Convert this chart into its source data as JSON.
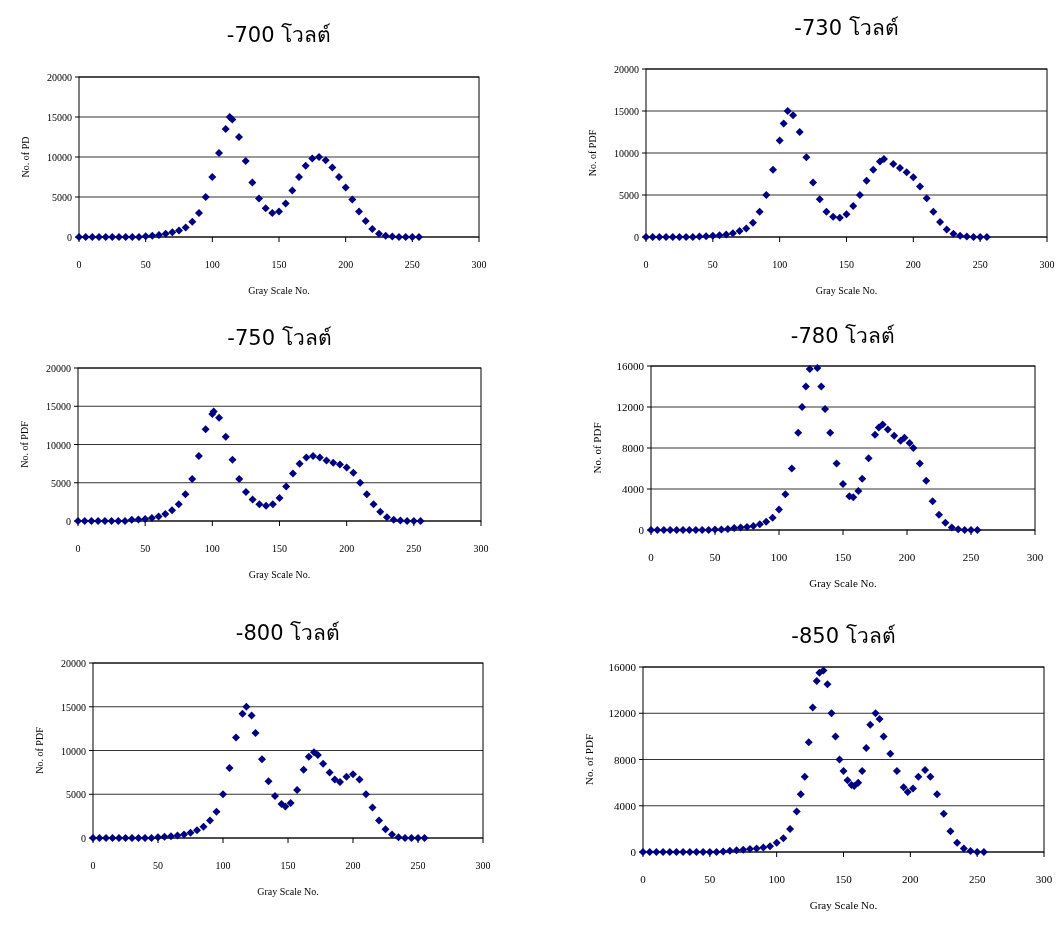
{
  "chart_data": [
    {
      "type": "scatter",
      "title": "-700  โวลต์",
      "xlabel": "Gray Scale No.",
      "ylabel": "No. of PD",
      "color": "#000080",
      "marker": "diamond",
      "grid": "y",
      "xlim": [
        0,
        300
      ],
      "xticks": [
        0,
        50,
        100,
        150,
        200,
        250,
        300
      ],
      "ylim": [
        0,
        20000
      ],
      "yticks": [
        0,
        5000,
        10000,
        15000,
        20000
      ],
      "x": [
        0,
        5,
        10,
        15,
        20,
        25,
        30,
        35,
        40,
        45,
        50,
        55,
        60,
        65,
        70,
        75,
        80,
        85,
        90,
        95,
        100,
        105,
        110,
        113,
        115,
        120,
        125,
        130,
        135,
        140,
        145,
        150,
        155,
        160,
        165,
        170,
        175,
        180,
        185,
        190,
        195,
        200,
        205,
        210,
        215,
        220,
        225,
        230,
        235,
        240,
        245,
        250,
        255
      ],
      "values": [
        0,
        0,
        0,
        0,
        0,
        0,
        0,
        0,
        0,
        0,
        100,
        150,
        250,
        400,
        600,
        800,
        1200,
        1900,
        3000,
        5000,
        7500,
        10500,
        13500,
        15000,
        14700,
        12500,
        9500,
        6800,
        4800,
        3600,
        3000,
        3200,
        4200,
        5800,
        7500,
        8900,
        9800,
        10000,
        9600,
        8700,
        7500,
        6200,
        4700,
        3200,
        2000,
        1000,
        400,
        150,
        50,
        0,
        0,
        0,
        0
      ]
    },
    {
      "type": "scatter",
      "title": "-730  โวลต์",
      "xlabel": "Gray Scale No.",
      "ylabel": "No. of PDF",
      "color": "#000080",
      "marker": "diamond",
      "grid": "y",
      "xlim": [
        0,
        300
      ],
      "xticks": [
        0,
        50,
        100,
        150,
        200,
        250,
        300
      ],
      "ylim": [
        0,
        20000
      ],
      "yticks": [
        0,
        5000,
        10000,
        15000,
        20000
      ],
      "x": [
        0,
        5,
        10,
        15,
        20,
        25,
        30,
        35,
        40,
        45,
        50,
        55,
        60,
        65,
        70,
        75,
        80,
        85,
        90,
        95,
        100,
        103,
        106,
        110,
        115,
        120,
        125,
        130,
        135,
        140,
        145,
        150,
        155,
        160,
        165,
        170,
        175,
        178,
        185,
        190,
        195,
        200,
        205,
        210,
        215,
        220,
        225,
        230,
        235,
        240,
        245,
        250,
        255
      ],
      "values": [
        0,
        0,
        0,
        0,
        0,
        0,
        0,
        0,
        50,
        100,
        150,
        200,
        300,
        450,
        700,
        1000,
        1700,
        3000,
        5000,
        8000,
        11500,
        13500,
        15000,
        14500,
        12500,
        9500,
        6500,
        4500,
        3000,
        2400,
        2300,
        2700,
        3700,
        5000,
        6700,
        8000,
        9000,
        9300,
        8700,
        8200,
        7700,
        7100,
        6000,
        4600,
        3000,
        1800,
        900,
        400,
        150,
        50,
        0,
        0,
        0
      ]
    },
    {
      "type": "scatter",
      "title": "-750  โวลต์",
      "xlabel": "Gray Scale No.",
      "ylabel": "No. of PDF",
      "color": "#000080",
      "marker": "diamond",
      "grid": "y",
      "xlim": [
        0,
        300
      ],
      "xticks": [
        0,
        50,
        100,
        150,
        200,
        250,
        300
      ],
      "ylim": [
        0,
        20000
      ],
      "yticks": [
        0,
        5000,
        10000,
        15000,
        20000
      ],
      "x": [
        0,
        5,
        10,
        15,
        20,
        25,
        30,
        35,
        40,
        45,
        50,
        55,
        60,
        65,
        70,
        75,
        80,
        85,
        90,
        95,
        100,
        101,
        105,
        110,
        115,
        120,
        125,
        130,
        135,
        140,
        145,
        150,
        155,
        160,
        165,
        170,
        175,
        180,
        185,
        190,
        195,
        200,
        205,
        210,
        215,
        220,
        225,
        230,
        235,
        240,
        245,
        250,
        255
      ],
      "values": [
        0,
        0,
        0,
        0,
        0,
        0,
        0,
        0,
        150,
        200,
        250,
        400,
        600,
        900,
        1400,
        2200,
        3500,
        5500,
        8500,
        12000,
        14000,
        14300,
        13500,
        11000,
        8000,
        5500,
        3800,
        2800,
        2200,
        2000,
        2200,
        3000,
        4500,
        6200,
        7500,
        8300,
        8500,
        8300,
        7900,
        7600,
        7400,
        7000,
        6300,
        5000,
        3500,
        2200,
        1200,
        500,
        150,
        50,
        0,
        0,
        0
      ]
    },
    {
      "type": "scatter",
      "title": "-780  โวลต์",
      "xlabel": "Gray Scale No.",
      "ylabel": "No. of PDF",
      "color": "#000080",
      "marker": "diamond",
      "grid": "y",
      "xlim": [
        0,
        300
      ],
      "xticks": [
        0,
        50,
        100,
        150,
        200,
        250,
        300
      ],
      "ylim": [
        0,
        16000
      ],
      "yticks": [
        0,
        4000,
        8000,
        12000,
        16000
      ],
      "x": [
        0,
        5,
        10,
        15,
        20,
        25,
        30,
        35,
        40,
        45,
        50,
        55,
        60,
        65,
        70,
        75,
        80,
        85,
        90,
        95,
        100,
        105,
        110,
        115,
        118,
        121,
        124,
        130,
        133,
        136,
        140,
        145,
        150,
        155,
        158,
        162,
        165,
        170,
        175,
        178,
        181,
        185,
        190,
        195,
        198,
        202,
        205,
        210,
        215,
        220,
        225,
        230,
        235,
        240,
        245,
        250,
        255
      ],
      "values": [
        0,
        0,
        0,
        0,
        0,
        0,
        0,
        0,
        0,
        0,
        50,
        50,
        100,
        200,
        250,
        300,
        400,
        550,
        800,
        1200,
        2000,
        3500,
        6000,
        9500,
        12000,
        14000,
        15700,
        15800,
        14000,
        11800,
        9500,
        6500,
        4500,
        3300,
        3200,
        3800,
        5000,
        7000,
        9300,
        10000,
        10300,
        9800,
        9200,
        8700,
        9000,
        8500,
        8000,
        6500,
        4800,
        2800,
        1500,
        700,
        250,
        80,
        0,
        0,
        0
      ]
    },
    {
      "type": "scatter",
      "title": "-800  โวลต์",
      "xlabel": "Gray Scale No.",
      "ylabel": "No. of PDF",
      "color": "#000080",
      "marker": "diamond",
      "grid": "y",
      "xlim": [
        0,
        300
      ],
      "xticks": [
        0,
        50,
        100,
        150,
        200,
        250,
        300
      ],
      "ylim": [
        0,
        20000
      ],
      "yticks": [
        0,
        5000,
        10000,
        15000,
        20000
      ],
      "x": [
        0,
        5,
        10,
        15,
        20,
        25,
        30,
        35,
        40,
        45,
        50,
        55,
        60,
        65,
        70,
        75,
        80,
        85,
        90,
        95,
        100,
        105,
        110,
        115,
        118,
        122,
        125,
        130,
        135,
        140,
        145,
        148,
        152,
        157,
        162,
        166,
        170,
        173,
        177,
        182,
        186,
        190,
        195,
        200,
        205,
        210,
        215,
        220,
        225,
        230,
        235,
        240,
        245,
        250,
        255
      ],
      "values": [
        0,
        0,
        0,
        0,
        0,
        0,
        0,
        0,
        0,
        0,
        100,
        150,
        200,
        300,
        400,
        600,
        900,
        1300,
        2000,
        3000,
        5000,
        8000,
        11500,
        14200,
        15000,
        14000,
        12000,
        9000,
        6500,
        4800,
        3900,
        3600,
        4000,
        5500,
        7800,
        9300,
        9800,
        9500,
        8500,
        7500,
        6700,
        6400,
        7000,
        7300,
        6700,
        5000,
        3500,
        2000,
        1000,
        400,
        100,
        0,
        0,
        0,
        0
      ]
    },
    {
      "type": "scatter",
      "title": "-850  โวลต์",
      "xlabel": "Gray Scale No.",
      "ylabel": "No. of PDF",
      "color": "#000080",
      "marker": "diamond",
      "grid": "y",
      "xlim": [
        0,
        300
      ],
      "xticks": [
        0,
        50,
        100,
        150,
        200,
        250,
        300
      ],
      "ylim": [
        0,
        16000
      ],
      "yticks": [
        0,
        4000,
        8000,
        12000,
        16000
      ],
      "x": [
        0,
        5,
        10,
        15,
        20,
        25,
        30,
        35,
        40,
        45,
        50,
        55,
        60,
        65,
        70,
        75,
        80,
        85,
        90,
        95,
        100,
        105,
        110,
        115,
        118,
        121,
        124,
        127,
        130,
        132,
        135,
        138,
        141,
        144,
        147,
        150,
        153,
        156,
        158,
        161,
        164,
        167,
        170,
        174,
        177,
        180,
        185,
        190,
        195,
        198,
        202,
        206,
        211,
        215,
        220,
        225,
        230,
        235,
        240,
        245,
        250,
        255
      ],
      "values": [
        0,
        0,
        0,
        0,
        0,
        0,
        0,
        0,
        0,
        0,
        0,
        0,
        50,
        100,
        150,
        200,
        250,
        300,
        400,
        500,
        800,
        1200,
        2000,
        3500,
        5000,
        6500,
        9500,
        12500,
        14800,
        15500,
        15700,
        14500,
        12000,
        10000,
        8000,
        7000,
        6200,
        5800,
        5700,
        6000,
        7000,
        9000,
        11000,
        12000,
        11500,
        10000,
        8500,
        7000,
        5600,
        5200,
        5500,
        6500,
        7100,
        6500,
        5000,
        3300,
        1800,
        800,
        300,
        80,
        0,
        0
      ]
    }
  ]
}
